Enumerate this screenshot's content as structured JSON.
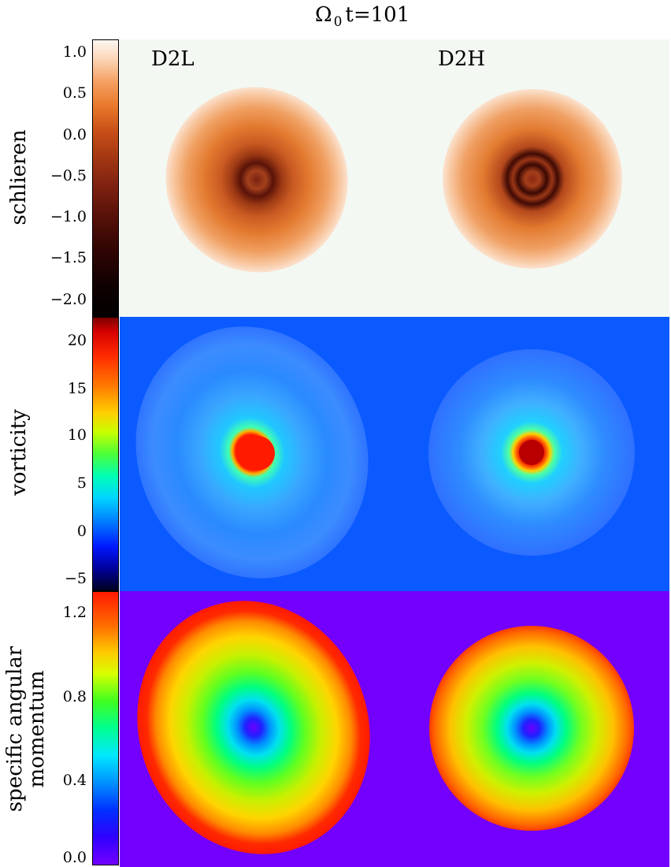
{
  "figure": {
    "title_symbol": "Ω",
    "title_sub": "0",
    "title_rest": "t=101",
    "column_labels": [
      "D2L",
      "D2H"
    ]
  },
  "chart_data": [
    {
      "type": "heatmap",
      "quantity": "schlieren",
      "colormap": "black-red-orange-white",
      "colors": {
        "background": "#f3f8f2",
        "low": "#000000",
        "mid": "#c0431a",
        "high": "#fcf1ea"
      },
      "colorbar_ticks": [
        "1.0",
        "0.5",
        "0.0",
        "−0.5",
        "−1.0",
        "−1.5",
        "−2.0"
      ],
      "colorbar_tick_values": [
        1.0,
        0.5,
        0.0,
        -0.5,
        -1.0,
        -1.5,
        -2.0
      ],
      "range": [
        -2.2,
        1.1
      ],
      "ylabel": "schlieren"
    },
    {
      "type": "heatmap",
      "quantity": "vorticity",
      "colormap": "rainbow",
      "colors": {
        "background": "#0a5aff",
        "low": "#000033",
        "core": "#ff1a00"
      },
      "colorbar_ticks": [
        "20",
        "15",
        "10",
        "5",
        "0",
        "−5"
      ],
      "colorbar_tick_values": [
        20,
        15,
        10,
        5,
        0,
        -5
      ],
      "range": [
        -6,
        22
      ],
      "ylabel": "vorticity"
    },
    {
      "type": "heatmap",
      "quantity": "specific angular momentum",
      "colormap": "rainbow",
      "colors": {
        "background": "#7300ff",
        "low": "#7300ff",
        "high": "#ff1a00"
      },
      "colorbar_ticks": [
        "1.2",
        "0.8",
        "0.4",
        "0.0"
      ],
      "colorbar_tick_values": [
        1.2,
        0.8,
        0.4,
        0.0
      ],
      "range": [
        0.0,
        1.3
      ],
      "ylabel_lines": [
        "specific angular",
        "momentum"
      ]
    }
  ]
}
